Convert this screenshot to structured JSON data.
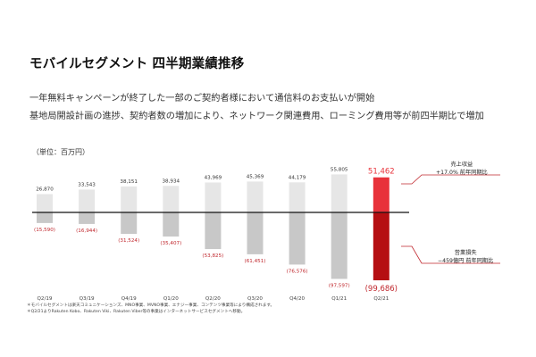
{
  "header": {
    "title": "モバイルセグメント 四半期業績推移",
    "subtitle_1": "一年無料キャンペーンが終了した一部のご契約者様において通信料のお支払いが開始",
    "subtitle_2": "基地局開設計画の進捗、契約者数の増加により、ネットワーク関連費用、ローミング費用等が前四半期比で増加"
  },
  "unit_label": "（単位：百万円）",
  "chart_data": {
    "type": "bar",
    "categories": [
      "Q2/19",
      "Q3/19",
      "Q4/19",
      "Q1/20",
      "Q2/20",
      "Q3/20",
      "Q4/20",
      "Q1/21",
      "Q2/21"
    ],
    "series": [
      {
        "name": "売上収益",
        "values": [
          26870,
          33543,
          38151,
          38934,
          43969,
          45369,
          44179,
          55805,
          51462
        ],
        "labels": [
          "26,870",
          "33,543",
          "38,151",
          "38,934",
          "43,969",
          "45,369",
          "44,179",
          "55,805",
          "51,462"
        ]
      },
      {
        "name": "営業損失",
        "values": [
          -15590,
          -16944,
          -31524,
          -35407,
          -53825,
          -61451,
          -76576,
          -97597,
          -99686
        ],
        "labels": [
          "(15,590)",
          "(16,944)",
          "(31,524)",
          "(35,407)",
          "(53,825)",
          "(61,451)",
          "(76,576)",
          "(97,597)",
          "(99,686)"
        ]
      }
    ],
    "highlight_index": 8,
    "colors": {
      "revenue": "#e6e6e6",
      "loss": "#c8c8c8",
      "revenue_highlight": "#e8323a",
      "loss_highlight": "#b50f12",
      "loss_label": "#c0272d",
      "revenue_label": "#333333"
    }
  },
  "annotations": {
    "revenue": {
      "title": "売上収益",
      "detail": "+17.0% 前年同期比"
    },
    "loss": {
      "title": "営業損失",
      "detail": "−459億円 前年同期比"
    }
  },
  "footnotes": [
    "＊モバイルセグメントは楽天コミュニケーションズ、MNO事業、MVNO事業、エナジー事業、コンテンツ事業等により構成されます。",
    "＊Q2/21よりRakuten Kobo、Rakuten Viki、Rakuten Viber等の事業はインターネットサービスセグメントへ移動。"
  ]
}
